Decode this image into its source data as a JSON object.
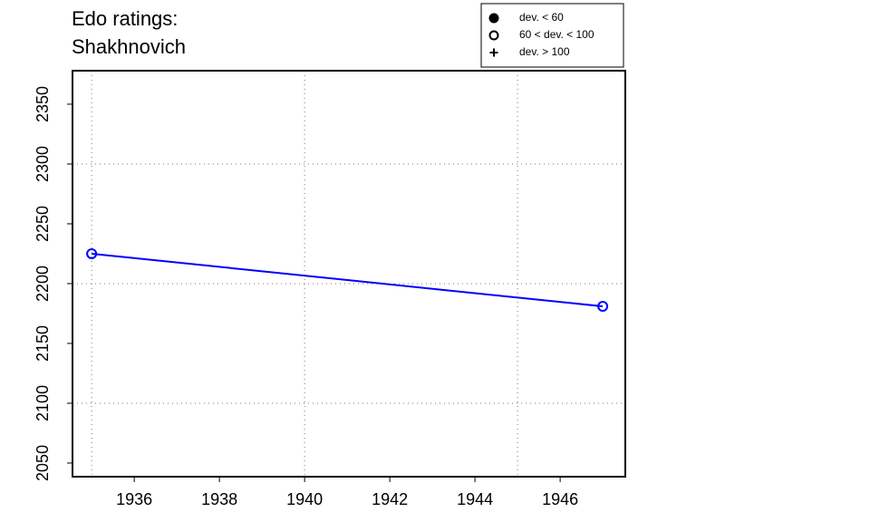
{
  "chart_data": {
    "type": "line",
    "title": "Edo ratings:",
    "subtitle": "Shakhnovich",
    "x": [
      1935,
      1947
    ],
    "series": [
      {
        "color": "#0000ff",
        "marker": "open-circle",
        "values": [
          2225,
          2181
        ]
      }
    ],
    "xlim": [
      1934.55,
      1947.53
    ],
    "xticks": [
      1936,
      1938,
      1940,
      1942,
      1944,
      1946
    ],
    "ylim": [
      2038.6,
      2378
    ],
    "yticks": [
      2050,
      2100,
      2150,
      2200,
      2250,
      2300,
      2350
    ],
    "xgrid": [
      1935,
      1940,
      1945
    ],
    "ygrid": [
      2100,
      2200,
      2300
    ],
    "legend_position": "top-right",
    "legend": [
      {
        "label": "dev. < 60",
        "marker": "filled-circle"
      },
      {
        "label": "60 < dev. < 100",
        "marker": "open-circle"
      },
      {
        "label": "dev. > 100",
        "marker": "plus"
      }
    ]
  }
}
